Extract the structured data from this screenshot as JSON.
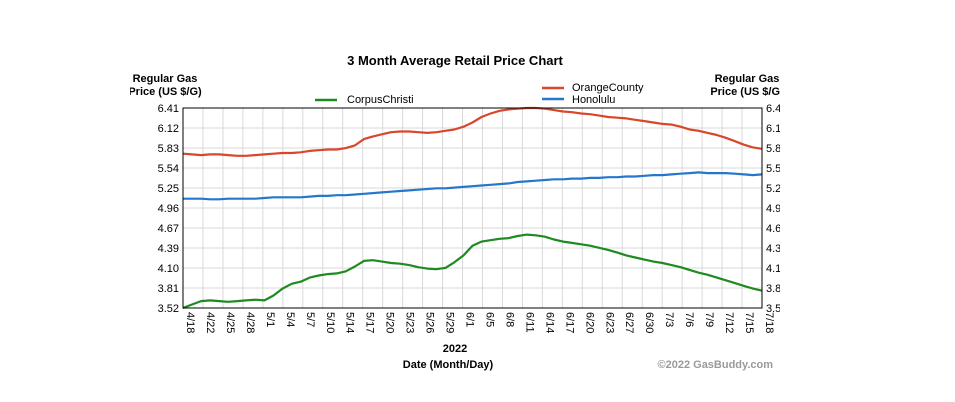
{
  "chart_data": {
    "type": "line",
    "title": "3 Month Average Retail Price Chart",
    "left_axis_label": [
      "Regular Gas",
      "Price (US $/G)"
    ],
    "right_axis_label": [
      "Regular Gas",
      "Price (US $/G)"
    ],
    "year_label": "2022",
    "xlabel": "Date (Month/Day)",
    "copyright": "©2022 GasBuddy.com",
    "y_ticks": [
      "3.52",
      "3.81",
      "4.10",
      "4.39",
      "4.67",
      "4.96",
      "5.25",
      "5.54",
      "5.83",
      "6.12",
      "6.41"
    ],
    "ylim": [
      3.52,
      6.41
    ],
    "x_ticks": [
      "4/18",
      "4/22",
      "4/25",
      "4/28",
      "5/1",
      "5/4",
      "5/7",
      "5/10",
      "5/14",
      "5/17",
      "5/20",
      "5/23",
      "5/26",
      "5/29",
      "6/1",
      "6/5",
      "6/8",
      "6/11",
      "6/14",
      "6/17",
      "6/20",
      "6/23",
      "6/27",
      "6/30",
      "7/3",
      "7/6",
      "7/9",
      "7/12",
      "7/15",
      "7/18"
    ],
    "series": [
      {
        "name": "OrangeCounty",
        "color": "#d9462a",
        "values": [
          5.75,
          5.74,
          5.73,
          5.74,
          5.74,
          5.73,
          5.72,
          5.72,
          5.73,
          5.74,
          5.75,
          5.76,
          5.76,
          5.77,
          5.79,
          5.8,
          5.81,
          5.81,
          5.83,
          5.87,
          5.96,
          6.0,
          6.03,
          6.06,
          6.07,
          6.07,
          6.06,
          6.05,
          6.06,
          6.08,
          6.1,
          6.14,
          6.2,
          6.28,
          6.33,
          6.37,
          6.39,
          6.4,
          6.41,
          6.41,
          6.4,
          6.38,
          6.36,
          6.35,
          6.33,
          6.32,
          6.3,
          6.28,
          6.27,
          6.26,
          6.24,
          6.22,
          6.2,
          6.18,
          6.17,
          6.14,
          6.1,
          6.08,
          6.05,
          6.02,
          5.98,
          5.93,
          5.88,
          5.84,
          5.82
        ]
      },
      {
        "name": "Honolulu",
        "color": "#2577cc",
        "values": [
          5.1,
          5.1,
          5.1,
          5.09,
          5.09,
          5.1,
          5.1,
          5.1,
          5.1,
          5.11,
          5.12,
          5.12,
          5.12,
          5.12,
          5.13,
          5.14,
          5.14,
          5.15,
          5.15,
          5.16,
          5.17,
          5.18,
          5.19,
          5.2,
          5.21,
          5.22,
          5.23,
          5.24,
          5.25,
          5.25,
          5.26,
          5.27,
          5.28,
          5.29,
          5.3,
          5.31,
          5.32,
          5.34,
          5.35,
          5.36,
          5.37,
          5.38,
          5.38,
          5.39,
          5.39,
          5.4,
          5.4,
          5.41,
          5.41,
          5.42,
          5.42,
          5.43,
          5.44,
          5.44,
          5.45,
          5.46,
          5.47,
          5.48,
          5.47,
          5.47,
          5.47,
          5.46,
          5.45,
          5.44,
          5.45
        ]
      },
      {
        "name": "CorpusChristi",
        "color": "#1f8a1f",
        "values": [
          3.52,
          3.57,
          3.62,
          3.63,
          3.62,
          3.61,
          3.62,
          3.63,
          3.64,
          3.63,
          3.7,
          3.8,
          3.87,
          3.9,
          3.96,
          3.99,
          4.01,
          4.02,
          4.05,
          4.12,
          4.2,
          4.21,
          4.19,
          4.17,
          4.16,
          4.14,
          4.11,
          4.09,
          4.08,
          4.1,
          4.18,
          4.28,
          4.42,
          4.48,
          4.5,
          4.52,
          4.53,
          4.56,
          4.58,
          4.57,
          4.55,
          4.51,
          4.48,
          4.46,
          4.44,
          4.42,
          4.39,
          4.36,
          4.32,
          4.28,
          4.25,
          4.22,
          4.19,
          4.17,
          4.14,
          4.11,
          4.07,
          4.03,
          4.0,
          3.96,
          3.92,
          3.88,
          3.84,
          3.8,
          3.77
        ]
      }
    ]
  }
}
